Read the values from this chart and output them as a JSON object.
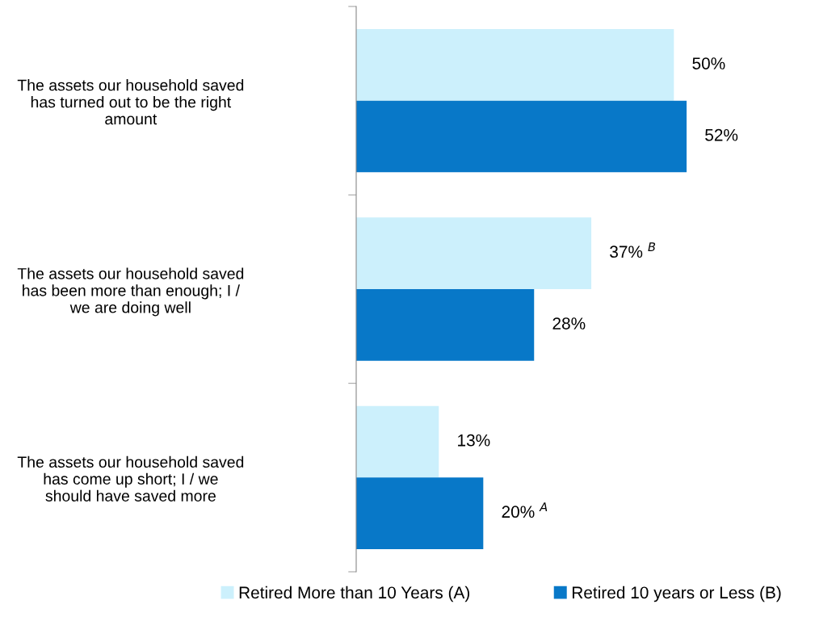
{
  "chart_data": {
    "type": "bar",
    "orientation": "horizontal",
    "categories": [
      "The assets our household saved has turned out to be the right amount",
      "The assets our household saved has been more than enough; I / we are doing well",
      "The assets our household saved has come up short; I / we should have saved more"
    ],
    "series": [
      {
        "name": "Retired More than 10 Years (A)",
        "color": "#ccf0fc",
        "values": [
          50,
          37,
          13
        ],
        "value_labels": [
          "50%",
          "37% $^{B}$",
          "13%"
        ]
      },
      {
        "name": "Retired 10 years or Less (B)",
        "color": "#0878c8",
        "values": [
          52,
          28,
          20
        ],
        "value_labels": [
          "52%",
          "28%",
          "20% $^{A}$"
        ]
      }
    ],
    "legend": "bottom",
    "grid": false
  }
}
